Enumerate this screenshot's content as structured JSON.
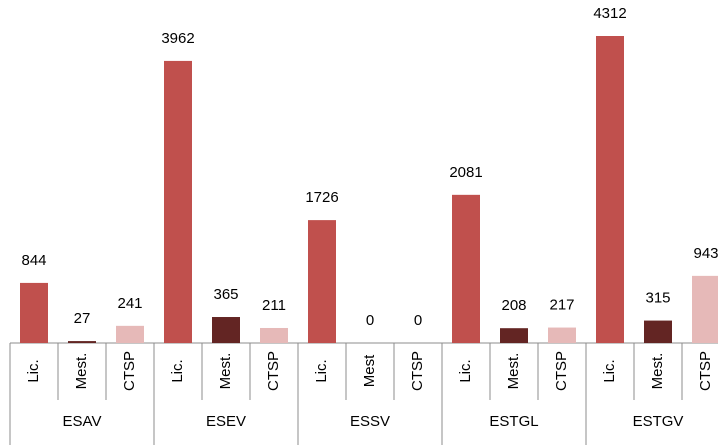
{
  "chart_data": {
    "type": "bar",
    "colors": [
      "#c0504d",
      "#632523",
      "#e6b9b8"
    ],
    "groups": [
      {
        "name": "ESAV",
        "categories": [
          "Lic.",
          "Mest.",
          "CTSP"
        ],
        "values": [
          844,
          27,
          241
        ]
      },
      {
        "name": "ESEV",
        "categories": [
          "Lic.",
          "Mest.",
          "CTSP"
        ],
        "values": [
          3962,
          365,
          211
        ]
      },
      {
        "name": "ESSV",
        "categories": [
          "Lic.",
          "Mest",
          "CTSP"
        ],
        "values": [
          1726,
          0,
          0
        ]
      },
      {
        "name": "ESTGL",
        "categories": [
          "Lic.",
          "Mest.",
          "CTSP"
        ],
        "values": [
          2081,
          208,
          217
        ]
      },
      {
        "name": "ESTGV",
        "categories": [
          "Lic.",
          "Mest.",
          "CTSP"
        ],
        "values": [
          4312,
          315,
          943
        ]
      }
    ]
  }
}
